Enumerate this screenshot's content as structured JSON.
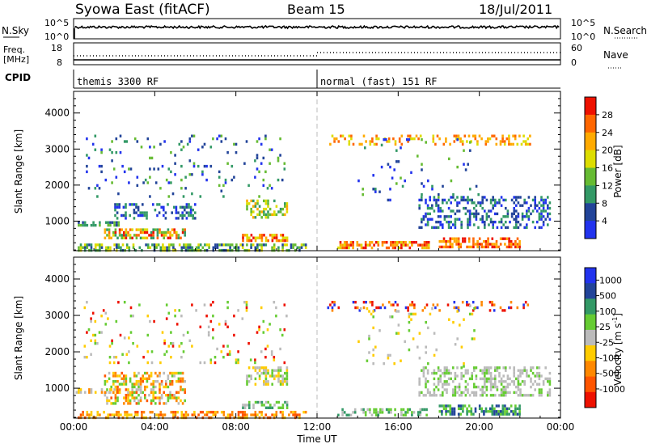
{
  "header": {
    "station": "Syowa East (fitACF)",
    "beam": "Beam 15",
    "date": "18/Jul/2011"
  },
  "info_panels": {
    "nsky_label": "N.Sky",
    "nsky_ticks": [
      "10^5",
      "10^0"
    ],
    "nsearch_label": "N.Search",
    "nsearch_ticks": [
      "10^5",
      "10^0"
    ],
    "freq_label": "Freq.",
    "freq_unit": "[MHz]",
    "freq_ticks": [
      "18",
      "8"
    ],
    "nave_label": "Nave",
    "nave_ticks": [
      "60",
      "0"
    ],
    "cpid_label": "CPID",
    "modes": [
      {
        "start_hour": 0,
        "label": "themis 3300 RF"
      },
      {
        "start_hour": 12,
        "label": "normal (fast) 151 RF"
      }
    ]
  },
  "x_axis": {
    "label": "Time UT",
    "ticks": [
      "00:00",
      "04:00",
      "08:00",
      "12:00",
      "16:00",
      "20:00",
      "00:00"
    ],
    "range_hours": [
      0,
      24
    ]
  },
  "chart_data": [
    {
      "type": "heatmap",
      "name": "power",
      "ylabel": "Slant Range [km]",
      "yticks": [
        "1000",
        "2000",
        "3000",
        "4000"
      ],
      "ylim": [
        180,
        4600
      ],
      "colorbar_label": "Power [dB]",
      "colorbar_ticks": [
        "4",
        "8",
        "12",
        "16",
        "20",
        "24",
        "28"
      ],
      "colormap": [
        "#2233ee",
        "#224499",
        "#339966",
        "#66bb33",
        "#dddd00",
        "#ffaa00",
        "#ff6600",
        "#ee1100"
      ],
      "blobs": [
        {
          "t": [
            0.1,
            2.2
          ],
          "r": [
            850,
            1000
          ],
          "levels": [
            1,
            2,
            3
          ],
          "density": 0.5
        },
        {
          "t": [
            0.1,
            11.5
          ],
          "r": [
            200,
            380
          ],
          "levels": [
            1,
            2,
            3,
            4
          ],
          "density": 0.55
        },
        {
          "t": [
            1.5,
            5.5
          ],
          "r": [
            550,
            800
          ],
          "levels": [
            2,
            3,
            4,
            5,
            6,
            7
          ],
          "density": 0.6
        },
        {
          "t": [
            2.0,
            6.0
          ],
          "r": [
            1100,
            1500
          ],
          "levels": [
            0,
            1,
            2
          ],
          "density": 0.35
        },
        {
          "t": [
            8.3,
            10.5
          ],
          "r": [
            450,
            650
          ],
          "levels": [
            4,
            5,
            6,
            7
          ],
          "density": 0.7
        },
        {
          "t": [
            8.5,
            10.5
          ],
          "r": [
            1100,
            1600
          ],
          "levels": [
            2,
            3,
            4,
            5
          ],
          "density": 0.5
        },
        {
          "t": [
            13.0,
            17.5
          ],
          "r": [
            250,
            450
          ],
          "levels": [
            4,
            5,
            6,
            7
          ],
          "density": 0.55
        },
        {
          "t": [
            17.0,
            23.5
          ],
          "r": [
            850,
            1700
          ],
          "levels": [
            0,
            1,
            2
          ],
          "density": 0.4
        },
        {
          "t": [
            18.0,
            22.0
          ],
          "r": [
            250,
            550
          ],
          "levels": [
            5,
            6,
            7
          ],
          "density": 0.6
        },
        {
          "t": [
            12.5,
            22.5
          ],
          "r": [
            3100,
            3400
          ],
          "levels": [
            4,
            5,
            6
          ],
          "density": 0.25
        },
        {
          "t": [
            0.5,
            10.5
          ],
          "r": [
            1700,
            3400
          ],
          "levels": [
            0,
            1,
            2,
            3
          ],
          "density": 0.06
        },
        {
          "t": [
            14.0,
            20.0
          ],
          "r": [
            1600,
            3300
          ],
          "levels": [
            0,
            1,
            2,
            3
          ],
          "density": 0.05
        }
      ]
    },
    {
      "type": "heatmap",
      "name": "velocity",
      "ylabel": "Slant Range [km]",
      "yticks": [
        "1000",
        "2000",
        "3000",
        "4000"
      ],
      "ylim": [
        180,
        4600
      ],
      "colorbar_label": "Velocity [m s",
      "colorbar_label_sup": "-1",
      "colorbar_label_end": "]",
      "colorbar_ticks": [
        "1000",
        "500",
        "100",
        "25",
        "-25",
        "-100",
        "-500",
        "-1000"
      ],
      "colormap": [
        "#2233ee",
        "#224499",
        "#339966",
        "#66cc33",
        "#bbbbbb",
        "#ffcc00",
        "#ff8800",
        "#ff5500",
        "#ee1100"
      ],
      "blobs": [
        {
          "t": [
            0.1,
            2.2
          ],
          "r": [
            850,
            1000
          ],
          "levels": [
            5,
            6,
            4
          ],
          "density": 0.5
        },
        {
          "t": [
            0.1,
            11.5
          ],
          "r": [
            200,
            380
          ],
          "levels": [
            5,
            6,
            7
          ],
          "density": 0.5
        },
        {
          "t": [
            1.5,
            5.5
          ],
          "r": [
            550,
            1450
          ],
          "levels": [
            5,
            6,
            7,
            4,
            3
          ],
          "density": 0.45
        },
        {
          "t": [
            8.3,
            10.5
          ],
          "r": [
            450,
            650
          ],
          "levels": [
            3,
            2,
            4
          ],
          "density": 0.6
        },
        {
          "t": [
            8.5,
            10.5
          ],
          "r": [
            1100,
            1600
          ],
          "levels": [
            4,
            3,
            5
          ],
          "density": 0.5
        },
        {
          "t": [
            13.0,
            17.5
          ],
          "r": [
            250,
            450
          ],
          "levels": [
            2,
            3,
            4
          ],
          "density": 0.55
        },
        {
          "t": [
            17.0,
            23.5
          ],
          "r": [
            800,
            1600
          ],
          "levels": [
            4,
            4,
            3
          ],
          "density": 0.45
        },
        {
          "t": [
            18.0,
            22.0
          ],
          "r": [
            250,
            550
          ],
          "levels": [
            2,
            3,
            1
          ],
          "density": 0.6
        },
        {
          "t": [
            12.5,
            22.5
          ],
          "r": [
            3100,
            3400
          ],
          "levels": [
            0,
            8,
            6
          ],
          "density": 0.2
        },
        {
          "t": [
            0.5,
            10.5
          ],
          "r": [
            1700,
            3400
          ],
          "levels": [
            3,
            4,
            5,
            8
          ],
          "density": 0.06
        },
        {
          "t": [
            14.0,
            20.0
          ],
          "r": [
            1600,
            3300
          ],
          "levels": [
            3,
            4,
            5
          ],
          "density": 0.05
        }
      ]
    }
  ]
}
